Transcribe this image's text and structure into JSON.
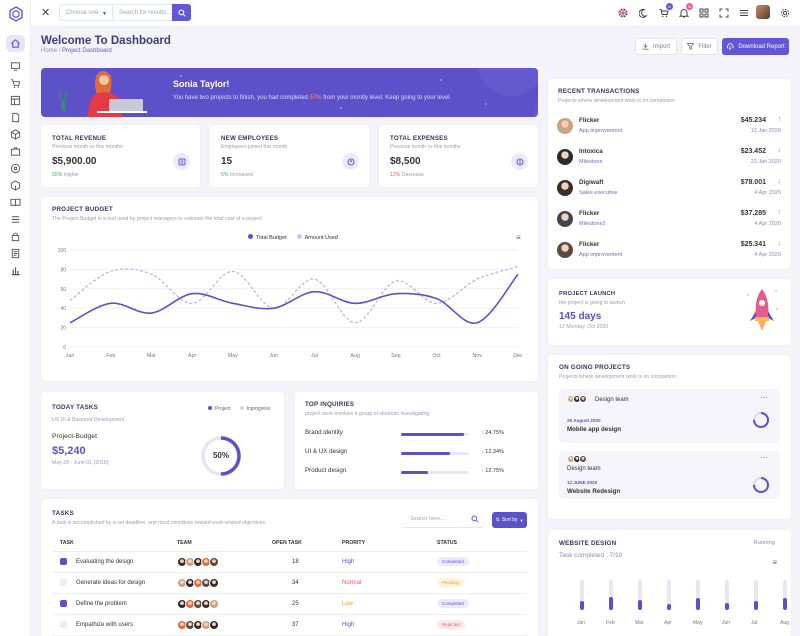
{
  "topbar": {
    "select_placeholder": "Choose one",
    "search_placeholder": "Search for results...",
    "cart_badge": "6",
    "notif_badge": "8"
  },
  "header": {
    "title": "Welcome To Dashboard",
    "crumb_home": "Home",
    "crumb_sep": "/",
    "crumb_current": "Project Dashboard",
    "import_label": "Import",
    "filter_label": "Filter",
    "download_label": "Download Report"
  },
  "banner": {
    "name": "Sonia Taylor!",
    "msg_before": "You have two projects to finish, you had completed ",
    "pct": "57%",
    "msg_after": " from your montly level, Keep going to your level"
  },
  "stats": [
    {
      "title": "TOTAL REVENUE",
      "sub": "Previous month vs this months",
      "value": "$5,900.00",
      "change_pct": "55%",
      "change_text": " Higher",
      "change_color": "#2fb568"
    },
    {
      "title": "NEW EMPLOYEES",
      "sub": "Employees joined this month",
      "value": "15",
      "change_pct": "5%",
      "change_text": " Increased",
      "change_color": "#2fb568"
    },
    {
      "title": "TOTAL EXPENSES",
      "sub": "Previous month vs this months",
      "value": "$8,500",
      "change_pct": "12%",
      "change_text": " Decrease",
      "change_color": "#f05b5b"
    }
  ],
  "budget": {
    "title": "PROJECT BUDGET",
    "sub": "The Project Budget is a tool used by project managers to estimate the total cost of a project",
    "legend_total": "Total Budget",
    "legend_used": "Amount Used"
  },
  "chart_data": {
    "type": "line",
    "categories": [
      "Jan",
      "Feb",
      "Mar",
      "Apr",
      "May",
      "Jun",
      "Jul",
      "Aug",
      "Sep",
      "Oct",
      "Nov",
      "Dec"
    ],
    "ylim": [
      0,
      100
    ],
    "yticks": [
      0,
      20,
      40,
      60,
      80,
      100
    ],
    "series": [
      {
        "name": "Total Budget",
        "color": "#5d51c9",
        "dashed": false,
        "values": [
          25,
          45,
          35,
          55,
          45,
          40,
          57,
          45,
          55,
          50,
          25,
          75
        ]
      },
      {
        "name": "Amount Used",
        "color": "#b7b3e8",
        "dashed": true,
        "values": [
          48,
          78,
          75,
          45,
          78,
          40,
          70,
          25,
          68,
          45,
          70,
          83
        ]
      }
    ]
  },
  "transactions": {
    "title": "RECENT TRANSACTIONS",
    "sub": "Projects where development work is on completion",
    "items": [
      {
        "name": "Flicker",
        "sub": "App improvement",
        "amount": "$45.234",
        "date": "12 Jan 2020",
        "dir": "up",
        "avatar": "#c9a27e"
      },
      {
        "name": "Intoxica",
        "sub": "Milestone",
        "amount": "$23.452",
        "date": "23 Jan 2020",
        "dir": "down",
        "avatar": "#2a2a33"
      },
      {
        "name": "Digiwaft",
        "sub": "Sales executive",
        "amount": "$78.001",
        "date": "4 Apr 2020",
        "dir": "down",
        "avatar": "#3a2e2a"
      },
      {
        "name": "Flicker",
        "sub": "Milestone2",
        "amount": "$37.285",
        "date": "4 Apr 2020",
        "dir": "up",
        "avatar": "#444450"
      },
      {
        "name": "Flicker",
        "sub": "App improvement",
        "amount": "$25.341",
        "date": "4 Apr 2020",
        "dir": "down",
        "avatar": "#5a4a45"
      }
    ]
  },
  "launch": {
    "title": "PROJECT LAUNCH",
    "sub": "the project is going to launch",
    "days": "145 days",
    "date": "12 Monday, Oct 2020"
  },
  "today": {
    "title": "TODAY TASKS",
    "sub": "UX UI & Backend Development",
    "legend_project": "Project",
    "legend_inprogress": "Inprogress",
    "label": "Project-Budget",
    "value": "$5,240",
    "dates": "May 28 - June 01 (2018)",
    "pct_label": "50%",
    "pct": 0.5
  },
  "inquiries": {
    "title": "TOP INQUIRIES",
    "sub": "project work involves a group of students investigating",
    "items": [
      {
        "label": "Brand identity",
        "value": "24.75%",
        "dir": "up",
        "fill": 0.92
      },
      {
        "label": "UI & UX design",
        "value": "12.34%",
        "dir": "down",
        "fill": 0.72
      },
      {
        "label": "Product design",
        "value": "12.75%",
        "dir": "up",
        "fill": 0.4
      }
    ]
  },
  "tasks": {
    "title": "TASKS",
    "sub": "A task is accomplished by a set deadline, and must contribute toward work-related objectives.",
    "search_placeholder": "Search here...",
    "sort_label": "Sort by",
    "headers": [
      "TASK",
      "TEAM",
      "OPEN TASK",
      "PRORITY",
      "STATUS"
    ],
    "rows": [
      {
        "task": "Evaluating the design",
        "checked": true,
        "open": "18",
        "priority": "High",
        "priority_color": "#5d51c9",
        "status": "Completed",
        "status_bg": "#ecebfb",
        "status_color": "#5d51c9"
      },
      {
        "task": "Generate ideas for design",
        "checked": false,
        "open": "34",
        "priority": "Normal",
        "priority_color": "#f05b5b",
        "status": "Pending",
        "status_bg": "#fdf2df",
        "status_color": "#f0a02a"
      },
      {
        "task": "Define the problem",
        "checked": true,
        "open": "25",
        "priority": "Low",
        "priority_color": "#f0a02a",
        "status": "Completed",
        "status_bg": "#ecebfb",
        "status_color": "#5d51c9"
      },
      {
        "task": "Empathize with users",
        "checked": false,
        "open": "37",
        "priority": "High",
        "priority_color": "#5d51c9",
        "status": "Rejected",
        "status_bg": "#fde8e8",
        "status_color": "#f05b5b"
      }
    ]
  },
  "ongoing": {
    "title": "ON GOING PROJECTS",
    "sub": "Projects where development work is on completion",
    "items": [
      {
        "team": "Design team",
        "date": "25 August 2020",
        "name": "Mobile app design"
      },
      {
        "team": "Design team",
        "date": "12 JUNE 2020",
        "name": "Website Redesign"
      }
    ]
  },
  "website": {
    "title": "WEBSITE DESIGN",
    "status": "Running",
    "sub": "Task completed : 7/10",
    "columns": [
      {
        "label": "Jan",
        "fill": 0.3
      },
      {
        "label": "Feb",
        "fill": 0.45
      },
      {
        "label": "Mar",
        "fill": 0.35
      },
      {
        "label": "Apr",
        "fill": 0.2
      },
      {
        "label": "May",
        "fill": 0.4
      },
      {
        "label": "Jun",
        "fill": 0.25
      },
      {
        "label": "Jul",
        "fill": 0.3
      },
      {
        "label": "Aug",
        "fill": 0.4
      }
    ]
  },
  "colors": {
    "accent": "#5d51c9",
    "accent_dark": "#6258d5"
  }
}
